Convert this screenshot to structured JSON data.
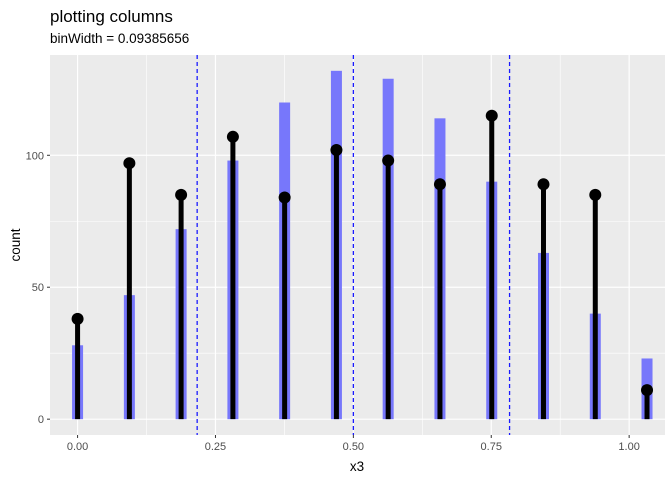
{
  "chart_data": {
    "type": "bar",
    "title": "plotting columns",
    "subtitle": "binWidth = 0.09385656",
    "xlabel": "x3",
    "ylabel": "count",
    "xlim": [
      -0.05,
      1.065
    ],
    "ylim": [
      -6,
      138
    ],
    "x_ticks": [
      0.0,
      0.25,
      0.5,
      0.75,
      1.0
    ],
    "x_tick_labels": [
      "0.00",
      "0.25",
      "0.50",
      "0.75",
      "1.00"
    ],
    "y_ticks": [
      0,
      50,
      100
    ],
    "y_tick_labels": [
      "0",
      "50",
      "100"
    ],
    "grid": true,
    "bar_color": "#7777fb",
    "lollipop_color": "#000000",
    "vline_color": "#1a1aff",
    "panel_bg": "#ebebeb",
    "grid_color": "#ffffff",
    "bars": {
      "x": [
        0.0,
        0.0939,
        0.1877,
        0.2816,
        0.3754,
        0.4693,
        0.5631,
        0.657,
        0.7509,
        0.8447,
        0.9386,
        1.0324
      ],
      "values": [
        28,
        47,
        72,
        98,
        120,
        132,
        129,
        114,
        90,
        63,
        40,
        23
      ]
    },
    "lollipops": {
      "x": [
        0.0,
        0.0939,
        0.1877,
        0.2816,
        0.3754,
        0.4693,
        0.5631,
        0.657,
        0.7509,
        0.8447,
        0.9386,
        1.0324
      ],
      "values": [
        38,
        97,
        85,
        107,
        84,
        102,
        98,
        89,
        115,
        89,
        85,
        11
      ]
    },
    "vlines": [
      0.2168,
      0.5,
      0.7832
    ]
  }
}
